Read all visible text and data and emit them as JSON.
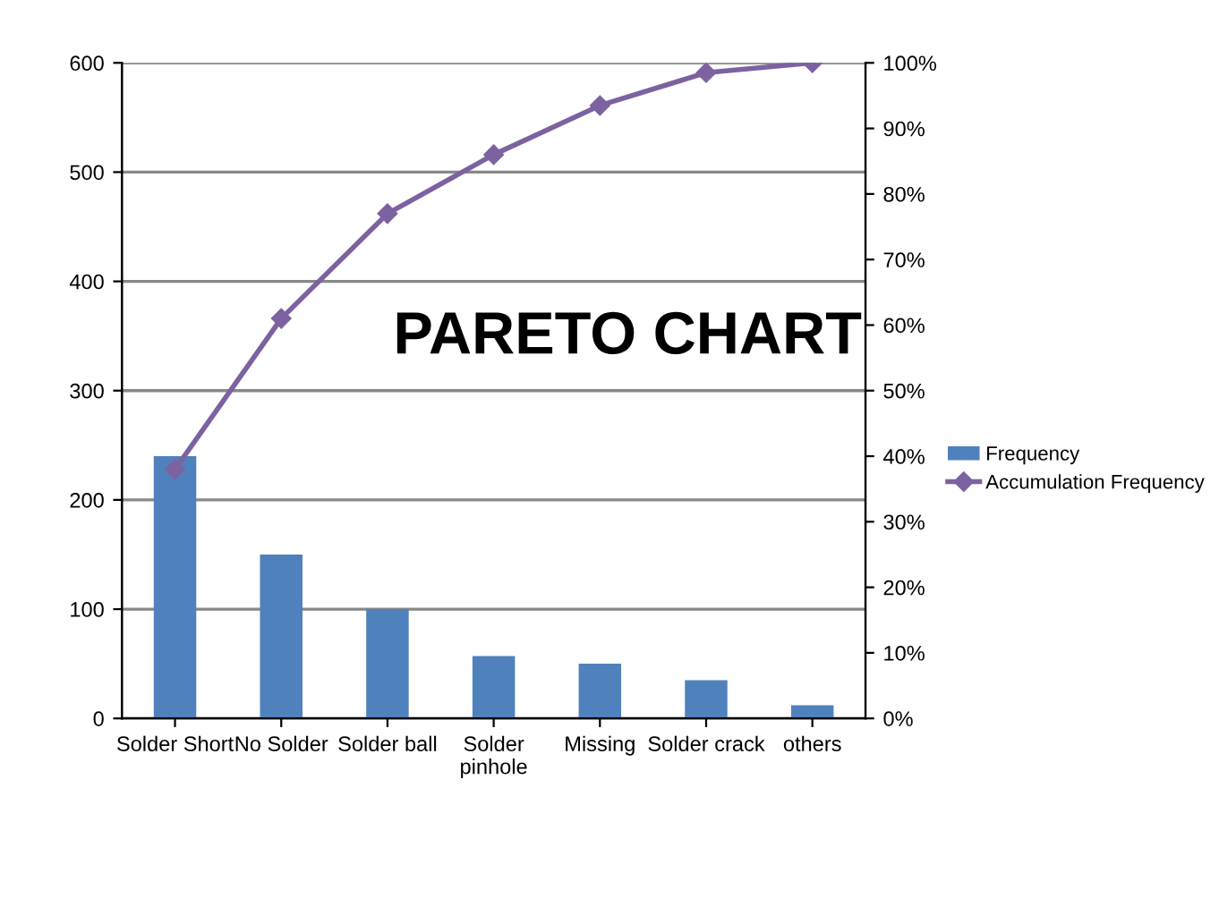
{
  "chart_data": {
    "type": "bar",
    "title": "PARETO CHART",
    "categories": [
      "Solder Short",
      "No Solder",
      "Solder ball",
      "Solder\npinhole",
      "Missing",
      "Solder crack",
      "others"
    ],
    "series": [
      {
        "name": "Frequency",
        "color": "#4f81bd",
        "values": [
          240,
          150,
          100,
          57,
          50,
          35,
          12
        ]
      },
      {
        "name": "Accumulation Frequency",
        "type": "line",
        "axis": "y2",
        "color": "#7c62a0",
        "marker": "diamond",
        "values": [
          38,
          61,
          77,
          86,
          93.5,
          98.5,
          100
        ]
      }
    ],
    "ylim": [
      0,
      600
    ],
    "yticks": [
      0,
      100,
      200,
      300,
      400,
      500,
      600
    ],
    "y2lim": [
      0,
      100
    ],
    "y2ticks": [
      {
        "value": 0,
        "label": "0%"
      },
      {
        "value": 10,
        "label": "10%"
      },
      {
        "value": 20,
        "label": "20%"
      },
      {
        "value": 30,
        "label": "30%"
      },
      {
        "value": 40,
        "label": "40%"
      },
      {
        "value": 50,
        "label": "50%"
      },
      {
        "value": 60,
        "label": "60%"
      },
      {
        "value": 70,
        "label": "70%"
      },
      {
        "value": 80,
        "label": "80%"
      },
      {
        "value": 90,
        "label": "90%"
      },
      {
        "value": 100,
        "label": "100%"
      }
    ],
    "grid": "y",
    "legend": "right"
  }
}
